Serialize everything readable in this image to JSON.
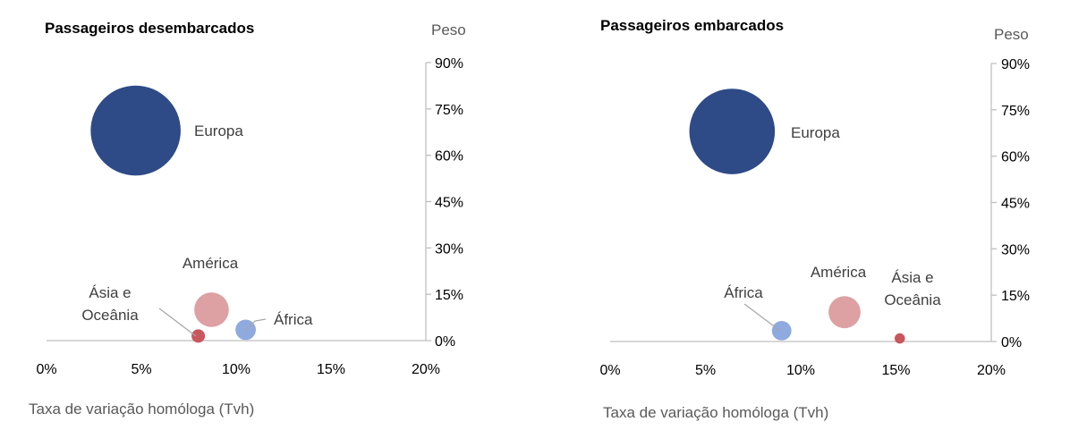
{
  "chart_data": [
    {
      "type": "bubble",
      "title": "Passageiros desembarcados",
      "xlabel": "Taxa de variação homóloga (Tvh)",
      "ylabel": "Peso",
      "xlim": [
        0,
        20
      ],
      "ylim": [
        0,
        90
      ],
      "x_ticks": [
        "0%",
        "5%",
        "10%",
        "15%",
        "20%"
      ],
      "y_ticks": [
        "0%",
        "15%",
        "30%",
        "45%",
        "60%",
        "75%",
        "90%"
      ],
      "grid": false,
      "points": [
        {
          "label": "Europa",
          "x": 4.7,
          "y": 68,
          "weight": 68,
          "color": "#2e4a87"
        },
        {
          "label": "América",
          "x": 8.7,
          "y": 10,
          "weight": 10,
          "color": "#dda0a3"
        },
        {
          "label": "África",
          "x": 10.5,
          "y": 3.5,
          "weight": 3.5,
          "color": "#8eaadf"
        },
        {
          "label": "Ásia e Oceânia",
          "label_lines": [
            "Ásia e",
            "Oceânia"
          ],
          "x": 8.0,
          "y": 1.5,
          "weight": 1.5,
          "color": "#c9575d"
        }
      ]
    },
    {
      "type": "bubble",
      "title": "Passageiros embarcados",
      "xlabel": "Taxa de variação homóloga (Tvh)",
      "ylabel": "Peso",
      "xlim": [
        0,
        20
      ],
      "ylim": [
        0,
        90
      ],
      "x_ticks": [
        "0%",
        "5%",
        "10%",
        "15%",
        "20%"
      ],
      "y_ticks": [
        "0%",
        "15%",
        "30%",
        "45%",
        "60%",
        "75%",
        "90%"
      ],
      "grid": false,
      "points": [
        {
          "label": "Europa",
          "x": 6.4,
          "y": 68,
          "weight": 68,
          "color": "#2e4a87"
        },
        {
          "label": "América",
          "x": 12.3,
          "y": 9.5,
          "weight": 9.5,
          "color": "#dda0a3"
        },
        {
          "label": "África",
          "x": 9.0,
          "y": 3.5,
          "weight": 3.5,
          "color": "#8eaadf"
        },
        {
          "label": "Ásia e Oceânia",
          "label_lines": [
            "Ásia e",
            "Oceânia"
          ],
          "x": 15.2,
          "y": 1.0,
          "weight": 1.0,
          "color": "#c9575d"
        }
      ]
    }
  ]
}
